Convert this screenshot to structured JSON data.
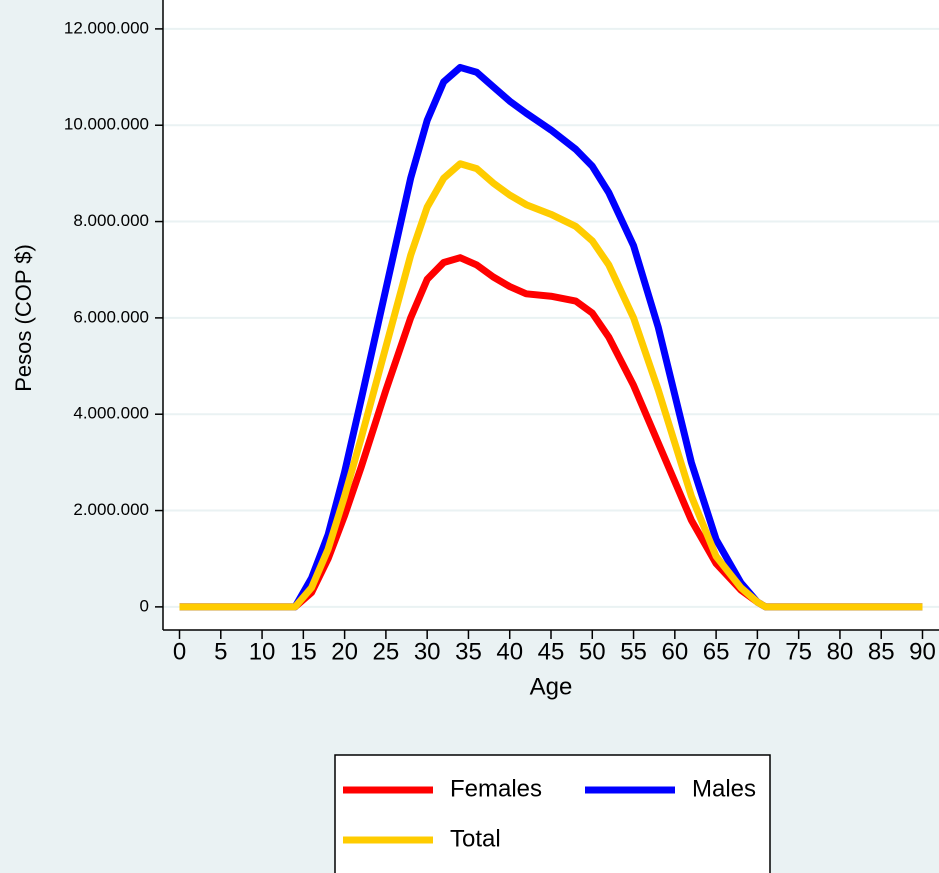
{
  "chart_data": {
    "type": "line",
    "y_label": "Pesos (COP $)",
    "x_label": "Age",
    "x": [
      0,
      5,
      10,
      14,
      16,
      18,
      20,
      22,
      25,
      28,
      30,
      32,
      34,
      36,
      38,
      40,
      42,
      45,
      48,
      50,
      52,
      55,
      58,
      60,
      62,
      65,
      68,
      70,
      71,
      75,
      80,
      85,
      90
    ],
    "series": [
      {
        "name": "Females",
        "color": "#ff0000",
        "values": [
          0,
          0,
          0,
          0,
          300000,
          1000000,
          1900000,
          2900000,
          4500000,
          6000000,
          6800000,
          7150000,
          7250000,
          7100000,
          6850000,
          6650000,
          6500000,
          6450000,
          6350000,
          6100000,
          5600000,
          4600000,
          3400000,
          2600000,
          1800000,
          900000,
          350000,
          100000,
          0,
          0,
          0,
          0,
          0
        ]
      },
      {
        "name": "Males",
        "color": "#0000ff",
        "values": [
          0,
          0,
          0,
          0,
          600000,
          1500000,
          2800000,
          4300000,
          6600000,
          8900000,
          10100000,
          10900000,
          11200000,
          11100000,
          10800000,
          10500000,
          10250000,
          9900000,
          9500000,
          9150000,
          8600000,
          7500000,
          5800000,
          4400000,
          3000000,
          1400000,
          500000,
          100000,
          0,
          0,
          0,
          0,
          0
        ]
      },
      {
        "name": "Total",
        "color": "#ffcc00",
        "values": [
          0,
          0,
          0,
          0,
          400000,
          1200000,
          2300000,
          3500000,
          5400000,
          7300000,
          8300000,
          8900000,
          9200000,
          9100000,
          8800000,
          8550000,
          8350000,
          8150000,
          7900000,
          7600000,
          7100000,
          6000000,
          4500000,
          3400000,
          2300000,
          1050000,
          400000,
          100000,
          0,
          0,
          0,
          0,
          0
        ]
      }
    ],
    "xlim": [
      -2,
      92
    ],
    "xticks": [
      0,
      5,
      10,
      15,
      20,
      25,
      30,
      35,
      40,
      45,
      50,
      55,
      60,
      65,
      70,
      75,
      80,
      85,
      90
    ],
    "ylim": [
      -480000,
      12600000
    ],
    "yticks": [
      0,
      {
        "value": 2000000,
        "label": "2.000.000"
      },
      {
        "value": 4000000,
        "label": "4.000.000"
      },
      {
        "value": 6000000,
        "label": "6.000.000"
      },
      {
        "value": 8000000,
        "label": "8.000.000"
      },
      {
        "value": 10000000,
        "label": "10.000.000"
      },
      {
        "value": 12000000,
        "label": "12.000.000"
      }
    ],
    "grid": true
  }
}
